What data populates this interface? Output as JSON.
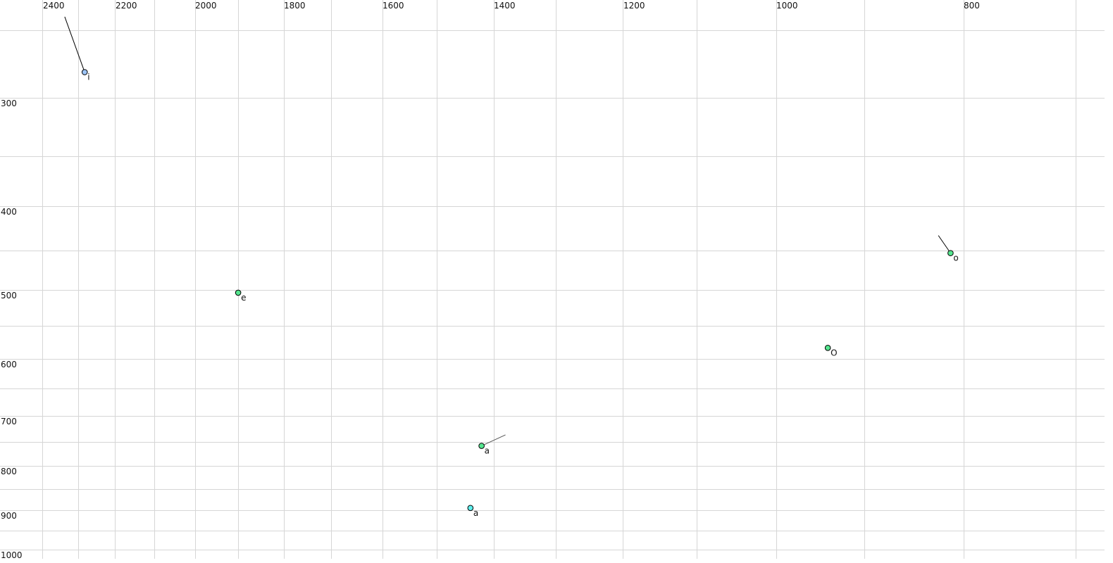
{
  "chart_data": {
    "type": "scatter",
    "title": "",
    "xlabel": "",
    "ylabel": "",
    "x_axis": {
      "reversed": true,
      "ticks": [
        2400,
        2200,
        2000,
        1800,
        1600,
        1400,
        1200,
        1000,
        800
      ],
      "position": "top"
    },
    "y_axis": {
      "reversed": false,
      "ticks": [
        300,
        400,
        500,
        600,
        700,
        800,
        900,
        1000
      ],
      "position": "left"
    },
    "grid": true,
    "points": [
      {
        "label": "i",
        "f2": 2285,
        "f1": 281,
        "color": "#9cc3f5",
        "trail": {
          "f2": 2340,
          "f1": 240
        }
      },
      {
        "label": "e",
        "f2": 1903,
        "f1": 504,
        "color": "#55e68f"
      },
      {
        "label": "O",
        "f2": 945,
        "f1": 584,
        "color": "#55e68f"
      },
      {
        "label": "o",
        "f2": 814,
        "f1": 456,
        "color": "#55e68f",
        "trail": {
          "f2": 827,
          "f1": 435
        }
      },
      {
        "label": "a",
        "f2": 1422,
        "f1": 760,
        "color": "#55e68f",
        "label_color": "#777777",
        "trail": {
          "f2": 1382,
          "f1": 738
        }
      },
      {
        "label": "a",
        "f2": 1442,
        "f1": 895,
        "color": "#5ff0ee"
      }
    ]
  }
}
